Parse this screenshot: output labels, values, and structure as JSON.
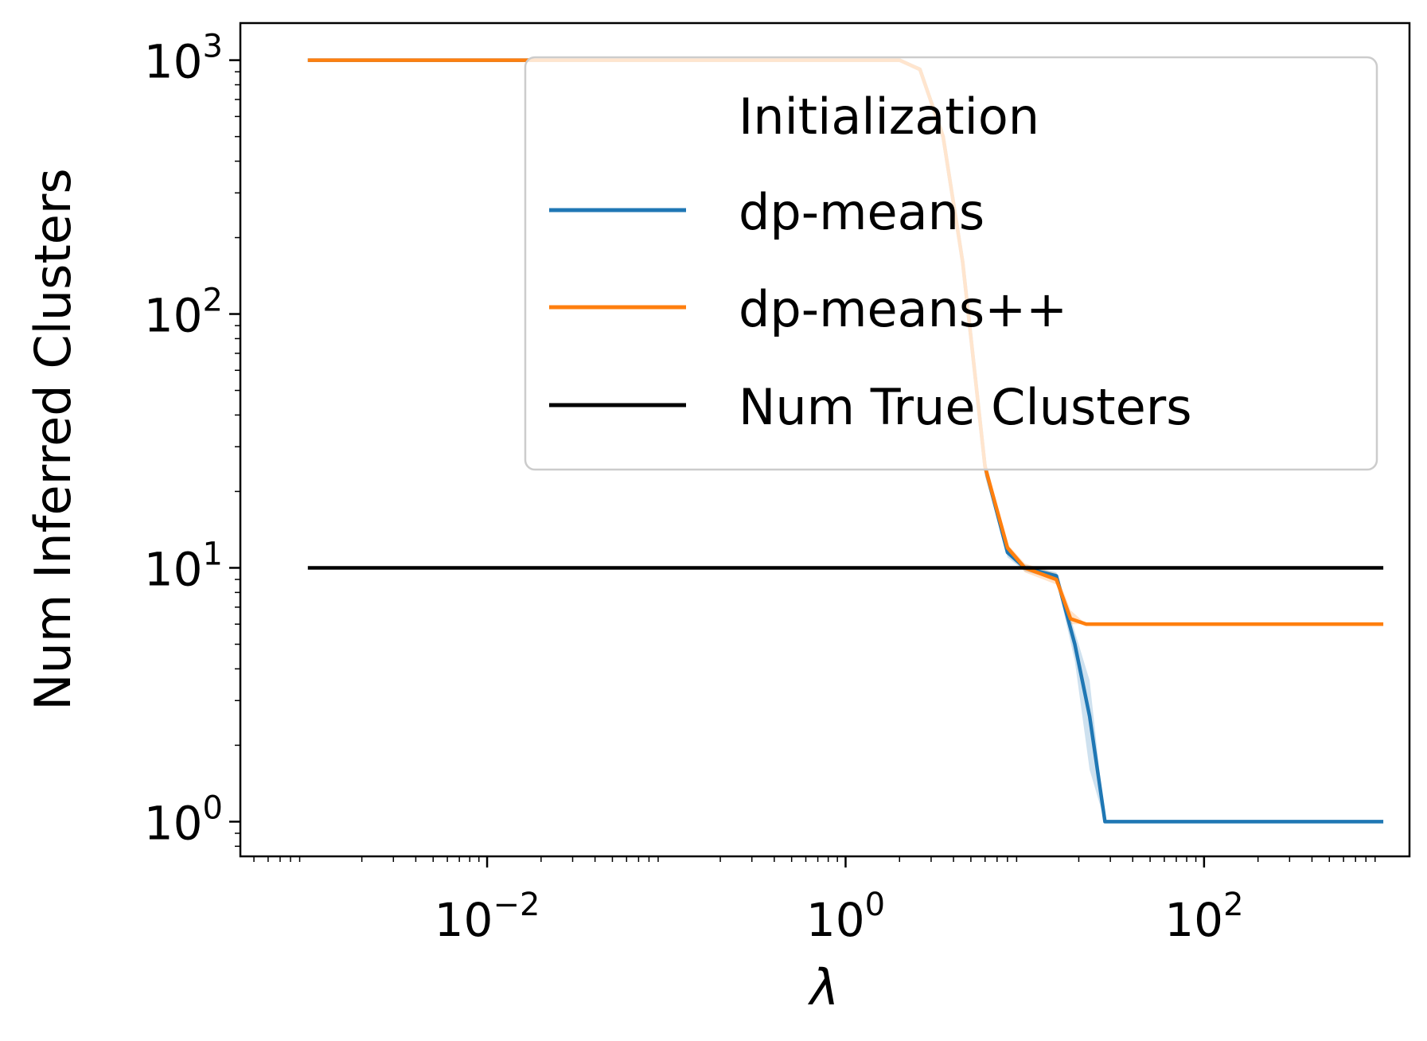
{
  "chart_data": {
    "type": "line",
    "title": "",
    "xlabel": "λ",
    "ylabel": "Num Inferred Clusters",
    "xscale": "log",
    "yscale": "log",
    "xlim": [
      0.00042,
      1400
    ],
    "ylim": [
      0.73,
      1400
    ],
    "grid": false,
    "x_ticks": [
      {
        "base": "10",
        "exp": "−2",
        "value": 0.01
      },
      {
        "base": "10",
        "exp": "0",
        "value": 1
      },
      {
        "base": "10",
        "exp": "2",
        "value": 100
      }
    ],
    "y_ticks": [
      {
        "base": "10",
        "exp": "0",
        "value": 1
      },
      {
        "base": "10",
        "exp": "1",
        "value": 10
      },
      {
        "base": "10",
        "exp": "2",
        "value": 100
      },
      {
        "base": "10",
        "exp": "3",
        "value": 1000
      }
    ],
    "legend": {
      "title": "Initialization",
      "position": "top-right",
      "entries": [
        "dp-means",
        "dp-means++",
        "Num True Clusters"
      ]
    },
    "series": [
      {
        "name": "dp-means",
        "color": "#1f77b4",
        "x": [
          0.001,
          0.005,
          0.01,
          0.05,
          0.1,
          0.5,
          1.0,
          2.0,
          2.6,
          3.5,
          4.5,
          6.0,
          8.0,
          10.0,
          15.0,
          19.0,
          23.0,
          28.0,
          100.0,
          1000.0
        ],
        "y": [
          1000,
          1000,
          1000,
          1000,
          1000,
          1000,
          1000,
          1000,
          920,
          500,
          160,
          25,
          11.5,
          10.0,
          9.3,
          5.0,
          2.6,
          1.0,
          1.0,
          1.0
        ],
        "band_lower": [
          1000,
          1000,
          1000,
          1000,
          1000,
          1000,
          1000,
          1000,
          900,
          470,
          145,
          23,
          11.0,
          9.7,
          9.0,
          4.3,
          1.6,
          1.0,
          1.0,
          1.0
        ],
        "band_upper": [
          1000,
          1000,
          1000,
          1000,
          1000,
          1000,
          1000,
          1000,
          940,
          530,
          175,
          27,
          12.0,
          10.3,
          9.6,
          5.6,
          3.6,
          1.0,
          1.0,
          1.0
        ]
      },
      {
        "name": "dp-means++",
        "color": "#ff7f0e",
        "x": [
          0.001,
          0.005,
          0.01,
          0.05,
          0.1,
          0.5,
          1.0,
          2.0,
          2.6,
          3.5,
          4.5,
          6.0,
          8.0,
          10.0,
          15.0,
          18.0,
          22.0,
          100.0,
          1000.0
        ],
        "y": [
          1000,
          1000,
          1000,
          1000,
          1000,
          1000,
          1000,
          1000,
          920,
          500,
          160,
          25,
          12.0,
          10.0,
          9.0,
          6.3,
          6.0,
          6.0,
          6.0
        ],
        "band_lower": [
          1000,
          1000,
          1000,
          1000,
          1000,
          1000,
          1000,
          1000,
          900,
          470,
          145,
          23,
          11.6,
          9.6,
          8.6,
          6.0,
          6.0,
          6.0,
          6.0
        ],
        "band_upper": [
          1000,
          1000,
          1000,
          1000,
          1000,
          1000,
          1000,
          1000,
          940,
          530,
          175,
          27,
          12.4,
          10.4,
          9.5,
          6.8,
          6.0,
          6.0,
          6.0
        ]
      },
      {
        "name": "Num True Clusters",
        "color": "#000000",
        "x": [
          0.001,
          1000.0
        ],
        "y": [
          10,
          10
        ]
      }
    ]
  }
}
